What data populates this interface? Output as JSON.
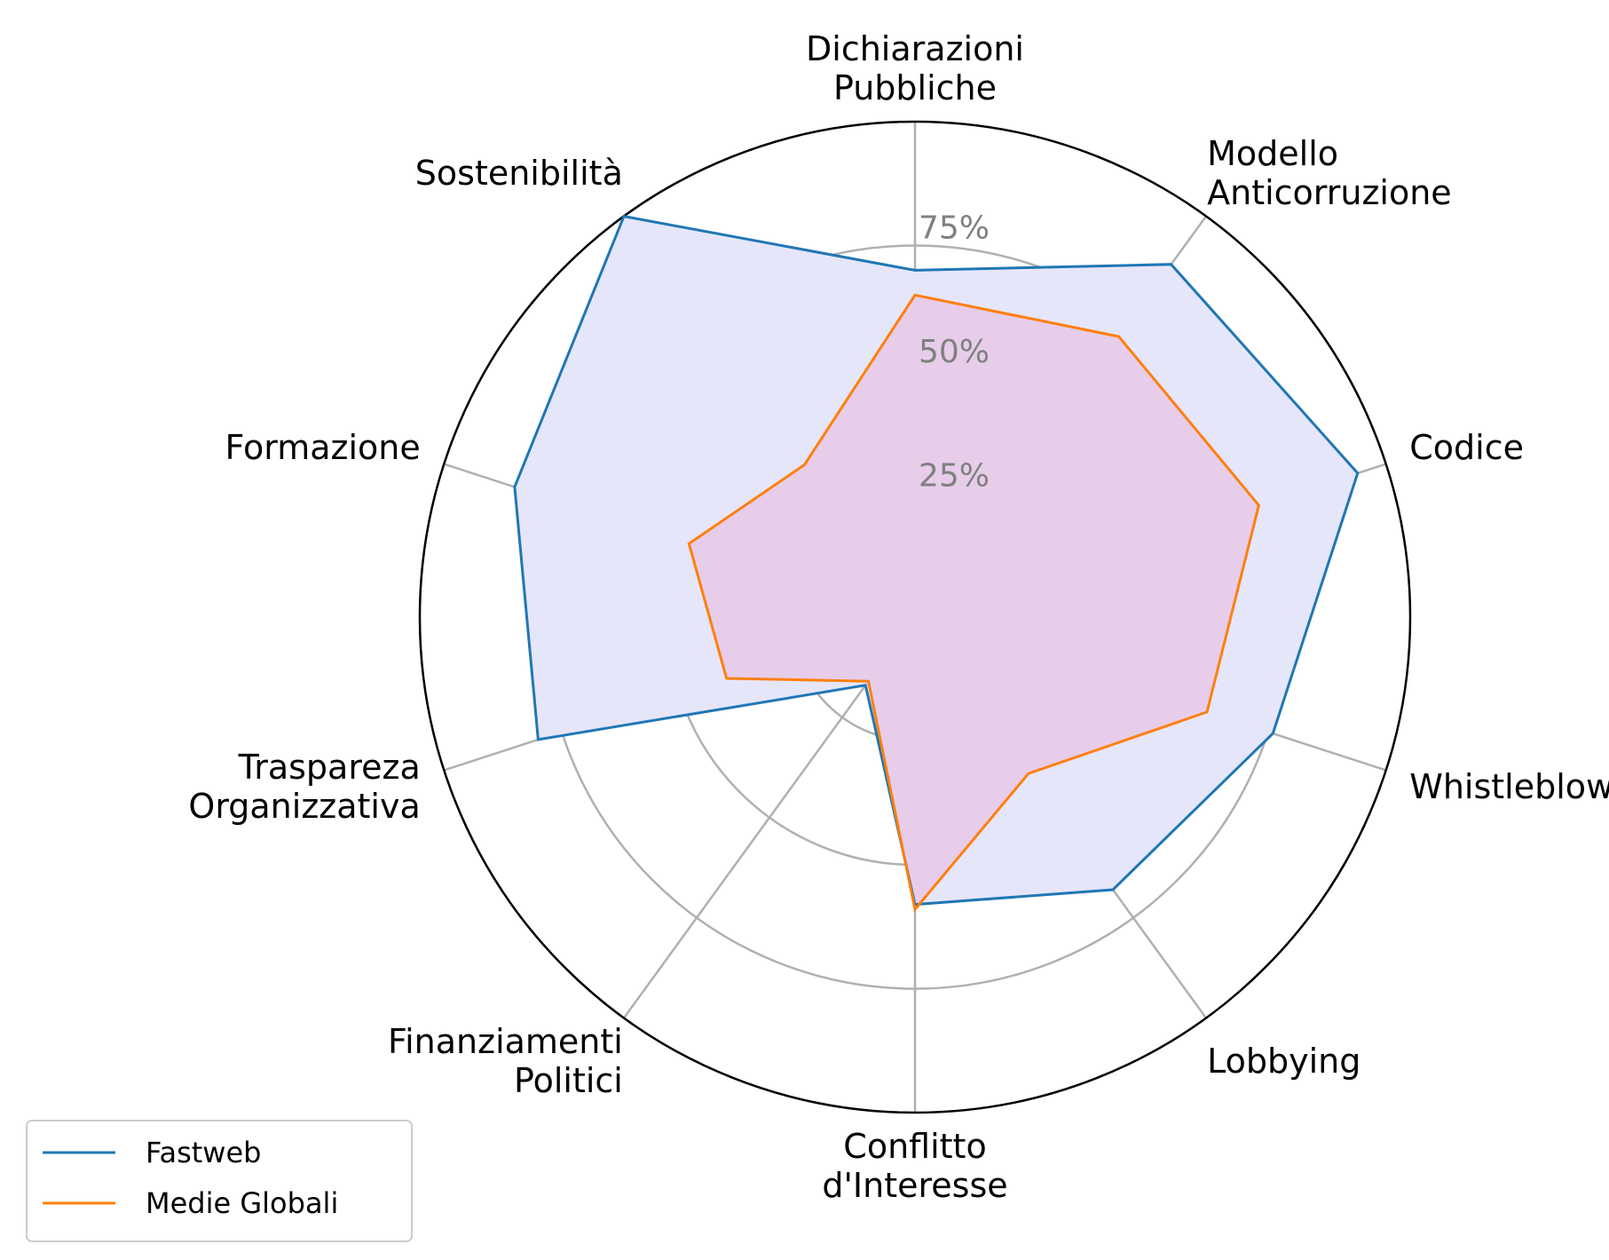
{
  "chart_data": {
    "type": "radar",
    "categories": [
      "Dichiarazioni\nPubbliche",
      "Modello\nAnticorruzione",
      "Codice",
      "Whistleblowing",
      "Lobbying",
      "Conflitto\nd'Interesse",
      "Finanziamenti\nPolitici",
      "Traspareza\nOrganizzativa",
      "Formazione",
      "Sostenibilità"
    ],
    "series": [
      {
        "name": "Fastweb",
        "color": "#1f77b4",
        "fill": "#e6e6fa",
        "values": [
          70,
          88,
          94,
          76,
          68,
          58,
          17,
          80,
          85,
          100
        ]
      },
      {
        "name": "Medie Globali",
        "color": "#ff7f0e",
        "fill": "#e6c8e6",
        "values": [
          65,
          70,
          73,
          62,
          39,
          59,
          16,
          40,
          48,
          38
        ]
      }
    ],
    "radial_ticks": [
      25,
      50,
      75
    ],
    "radial_tick_labels": [
      "25%",
      "50%",
      "75%"
    ],
    "rlim": [
      0,
      100
    ],
    "grid": true,
    "legend_position": "bottom-left"
  }
}
